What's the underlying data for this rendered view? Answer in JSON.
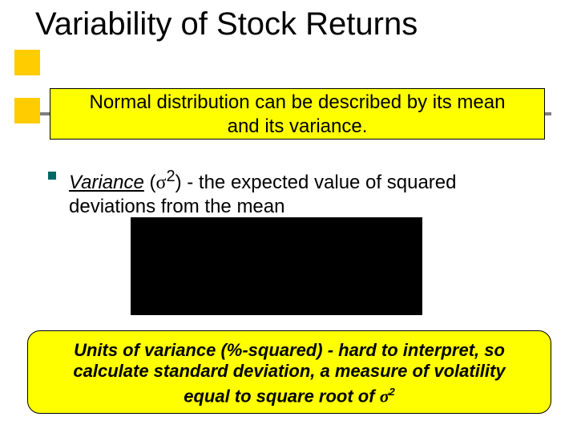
{
  "colors": {
    "highlight_bg": "#ffff00",
    "accent_square": "#ffcc00",
    "rule": "#808080",
    "bullet": "#006666",
    "title": "#000000",
    "body": "#000000",
    "redaction": "#000000"
  },
  "title": "Variability of Stock Returns",
  "box1": {
    "line1": "Normal distribution can be described by its mean",
    "line2": "and its variance."
  },
  "body": {
    "variance_word": "Variance",
    "sigma_open": " (",
    "sigma_sym": "σ",
    "sigma_sup": "2",
    "sigma_close": ") ",
    "rest1": "- the expected value of squared",
    "rest2": "deviations from the mean"
  },
  "box2": {
    "line1": "Units of variance (%-squared) - hard to interpret, so",
    "line2": "calculate standard deviation, a measure of volatility",
    "line3_a": "equal to square root of ",
    "line3_sigma": "σ",
    "line3_sup": "2"
  }
}
